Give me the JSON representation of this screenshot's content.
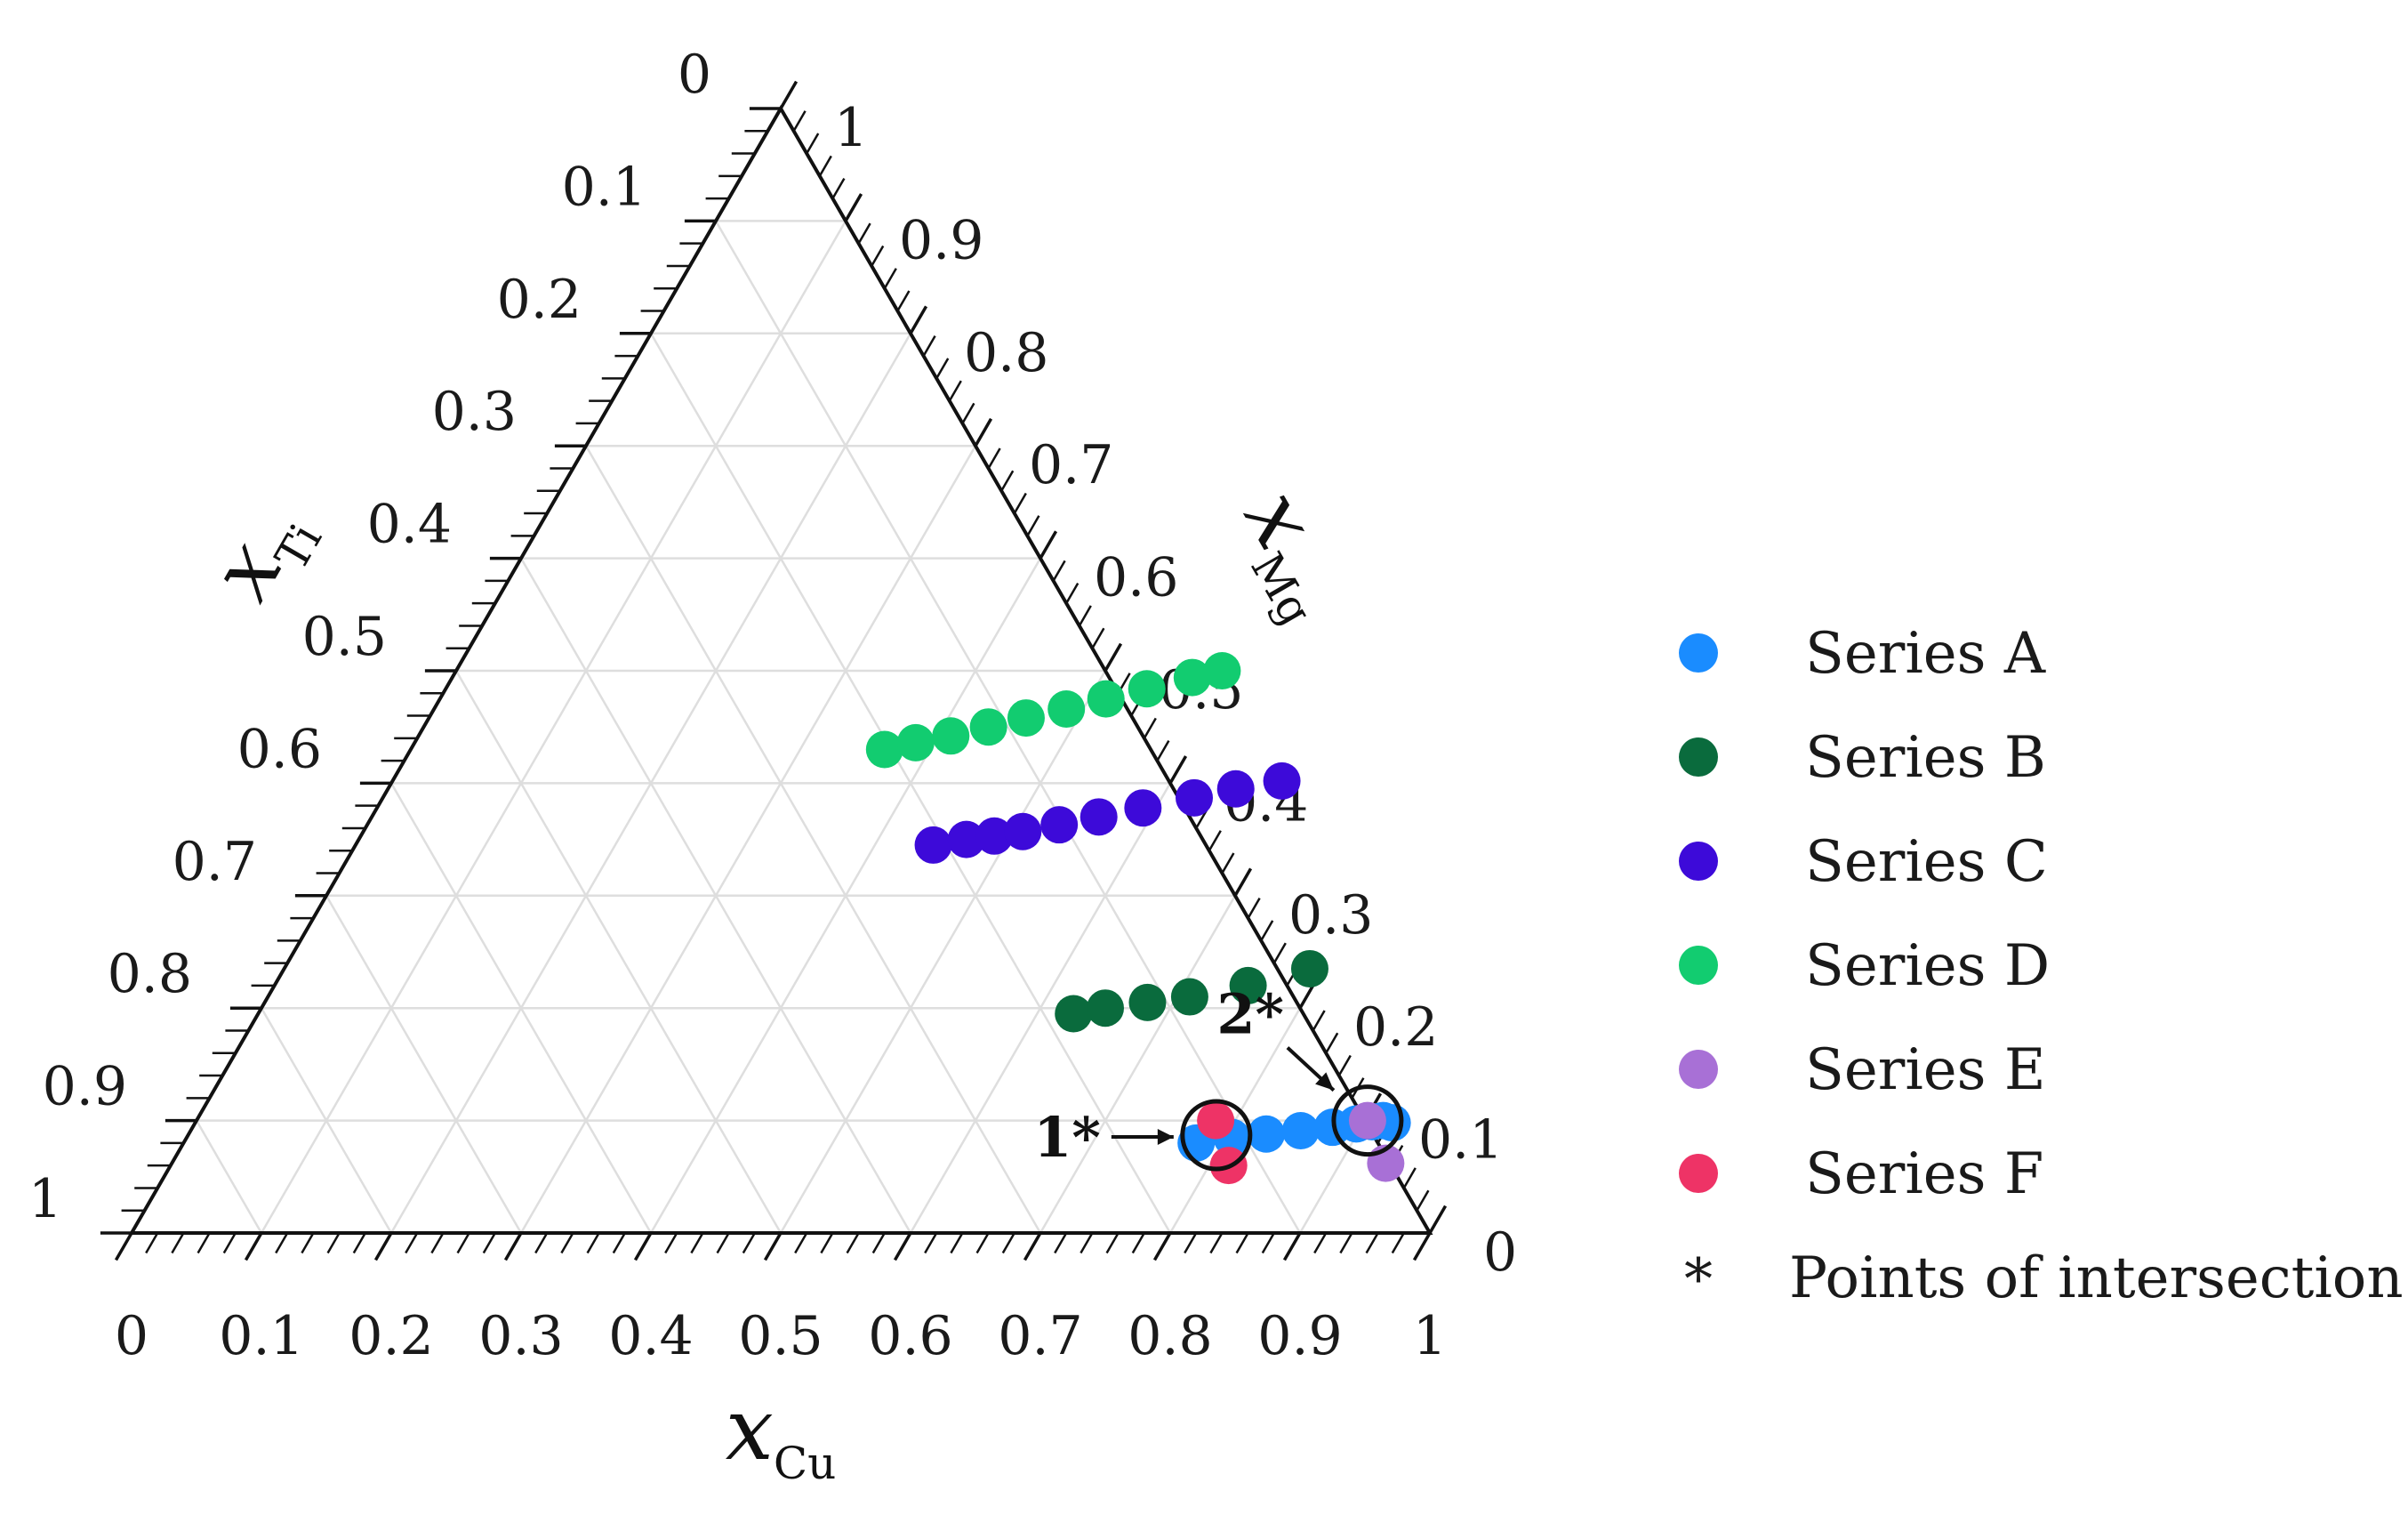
{
  "chart_data": {
    "type": "scatter",
    "projection": "ternary",
    "grid": true,
    "grid_step": 0.1,
    "legend_position": "right",
    "axes": {
      "bottom": {
        "symbol": "x",
        "sub": "Cu",
        "ticks": [
          "0",
          "0.1",
          "0.2",
          "0.3",
          "0.4",
          "0.5",
          "0.6",
          "0.7",
          "0.8",
          "0.9",
          "1"
        ]
      },
      "left": {
        "symbol": "x",
        "sub": "Ti",
        "ticks": [
          "0",
          "0.1",
          "0.2",
          "0.3",
          "0.4",
          "0.5",
          "0.6",
          "0.7",
          "0.8",
          "0.9",
          "1"
        ]
      },
      "right": {
        "symbol": "x",
        "sub": "Mg",
        "ticks": [
          "0",
          "0.1",
          "0.2",
          "0.3",
          "0.4",
          "0.5",
          "0.6",
          "0.7",
          "0.8",
          "0.9",
          "1"
        ]
      }
    },
    "series": [
      {
        "name": "Series A",
        "color": "#1a8cff",
        "points": [
          {
            "cu": 0.78,
            "mg": 0.08
          },
          {
            "cu": 0.805,
            "mg": 0.085
          },
          {
            "cu": 0.83,
            "mg": 0.088
          },
          {
            "cu": 0.855,
            "mg": 0.091
          },
          {
            "cu": 0.878,
            "mg": 0.094
          },
          {
            "cu": 0.895,
            "mg": 0.097
          },
          {
            "cu": 0.906,
            "mg": 0.099
          },
          {
            "cu": 0.914,
            "mg": 0.1
          },
          {
            "cu": 0.922,
            "mg": 0.098
          }
        ]
      },
      {
        "name": "Series B",
        "color": "#0a6b3d",
        "points": [
          {
            "cu": 0.628,
            "mg": 0.195
          },
          {
            "cu": 0.65,
            "mg": 0.2
          },
          {
            "cu": 0.68,
            "mg": 0.205
          },
          {
            "cu": 0.71,
            "mg": 0.21
          },
          {
            "cu": 0.75,
            "mg": 0.22
          },
          {
            "cu": 0.79,
            "mg": 0.235
          }
        ]
      },
      {
        "name": "Series C",
        "color": "#3d0ad9",
        "points": [
          {
            "cu": 0.445,
            "mg": 0.345
          },
          {
            "cu": 0.468,
            "mg": 0.35
          },
          {
            "cu": 0.488,
            "mg": 0.353
          },
          {
            "cu": 0.508,
            "mg": 0.357
          },
          {
            "cu": 0.533,
            "mg": 0.363
          },
          {
            "cu": 0.56,
            "mg": 0.37
          },
          {
            "cu": 0.59,
            "mg": 0.378
          },
          {
            "cu": 0.625,
            "mg": 0.387
          },
          {
            "cu": 0.653,
            "mg": 0.395
          },
          {
            "cu": 0.685,
            "mg": 0.402
          }
        ]
      },
      {
        "name": "Series D",
        "color": "#12cc70",
        "points": [
          {
            "cu": 0.365,
            "mg": 0.43
          },
          {
            "cu": 0.386,
            "mg": 0.436
          },
          {
            "cu": 0.41,
            "mg": 0.442
          },
          {
            "cu": 0.435,
            "mg": 0.45
          },
          {
            "cu": 0.46,
            "mg": 0.458
          },
          {
            "cu": 0.487,
            "mg": 0.466
          },
          {
            "cu": 0.513,
            "mg": 0.475
          },
          {
            "cu": 0.54,
            "mg": 0.484
          },
          {
            "cu": 0.57,
            "mg": 0.494
          },
          {
            "cu": 0.59,
            "mg": 0.5
          }
        ]
      },
      {
        "name": "Series E",
        "color": "#a870d6",
        "points": [
          {
            "cu": 0.902,
            "mg": 0.1
          },
          {
            "cu": 0.935,
            "mg": 0.062
          }
        ]
      },
      {
        "name": "Series F",
        "color": "#ee3366",
        "points": [
          {
            "cu": 0.785,
            "mg": 0.1
          },
          {
            "cu": 0.815,
            "mg": 0.06
          }
        ]
      }
    ],
    "annotations": [
      {
        "label": "1*",
        "circle_at": {
          "cu": 0.792,
          "mg": 0.087
        },
        "arrow_from": "left"
      },
      {
        "label": "2*",
        "circle_at": {
          "cu": 0.902,
          "mg": 0.1
        },
        "arrow_from": "top-left"
      }
    ],
    "legend_note": {
      "symbol": "*",
      "text": "Points of intersection"
    }
  }
}
